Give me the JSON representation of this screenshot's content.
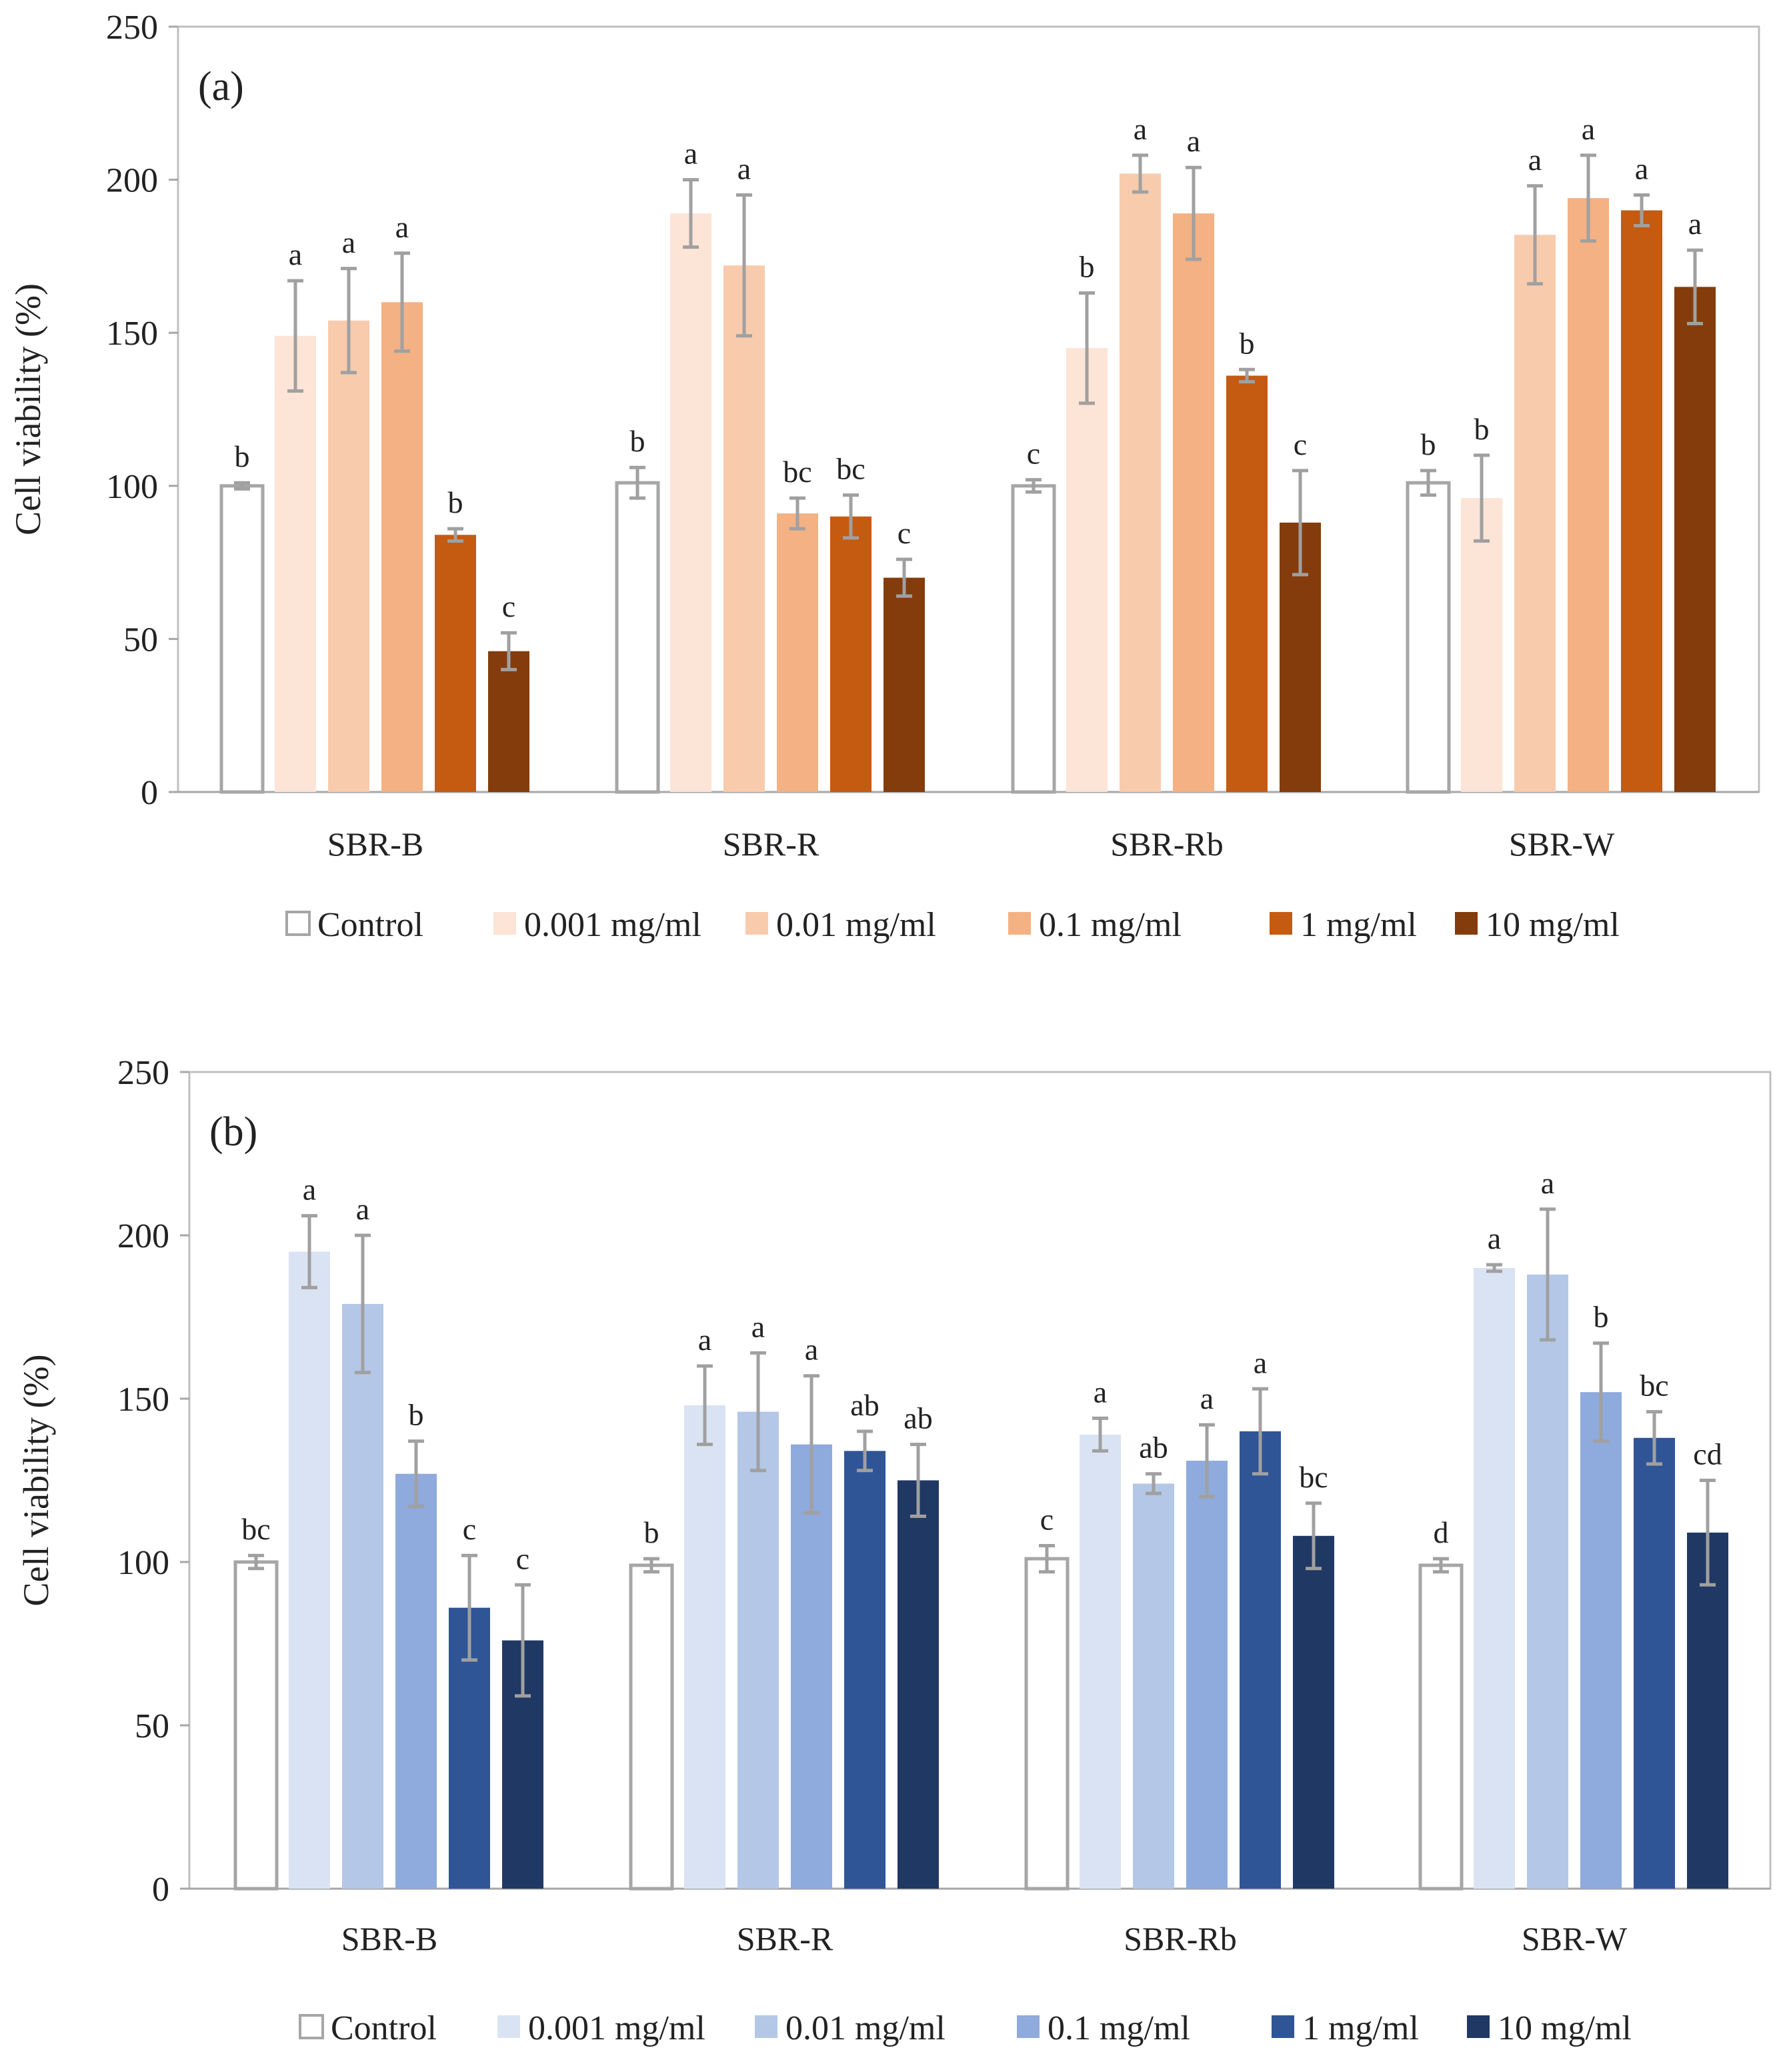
{
  "colors": {
    "control_fill": "#ffffff",
    "control_stroke": "#a6a6a6",
    "error_bar": "#a0a0a0",
    "axis": "#a6a6a6",
    "frame": "#bfbfbf"
  },
  "chart_data": [
    {
      "type": "bar",
      "panel_label": "(a)",
      "ylabel": "Cell viability (%)",
      "xlabel": "",
      "ylim": [
        0,
        250
      ],
      "yticks": [
        "0",
        "50",
        "100",
        "150",
        "200",
        "250"
      ],
      "grid": false,
      "legend_position": "bottom",
      "categories": [
        "SBR-B",
        "SBR-R",
        "SBR-Rb",
        "SBR-W"
      ],
      "series": [
        {
          "name": "Control",
          "color": "#ffffff",
          "values": [
            100,
            101,
            100,
            101
          ],
          "errors": [
            1,
            5,
            2,
            4
          ],
          "letters": [
            "b",
            "b",
            "c",
            "b"
          ]
        },
        {
          "name": "0.001 mg/ml",
          "color": "#fce4d6",
          "values": [
            149,
            189,
            145,
            96
          ],
          "errors": [
            18,
            11,
            18,
            14
          ],
          "letters": [
            "a",
            "a",
            "b",
            "b"
          ]
        },
        {
          "name": "0.01 mg/ml",
          "color": "#f8cbad",
          "values": [
            154,
            172,
            202,
            182
          ],
          "errors": [
            17,
            23,
            6,
            16
          ],
          "letters": [
            "a",
            "a",
            "a",
            "a"
          ]
        },
        {
          "name": "0.1 mg/ml",
          "color": "#f4b183",
          "values": [
            160,
            91,
            189,
            194
          ],
          "errors": [
            16,
            5,
            15,
            14
          ],
          "letters": [
            "a",
            "bc",
            "a",
            "a"
          ]
        },
        {
          "name": "1 mg/ml",
          "color": "#c55a11",
          "values": [
            84,
            90,
            136,
            190
          ],
          "errors": [
            2,
            7,
            2,
            5
          ],
          "letters": [
            "b",
            "bc",
            "b",
            "a"
          ]
        },
        {
          "name": "10 mg/ml",
          "color": "#843c0c",
          "values": [
            46,
            70,
            88,
            165
          ],
          "errors": [
            6,
            6,
            17,
            12
          ],
          "letters": [
            "c",
            "c",
            "c",
            "a"
          ]
        }
      ]
    },
    {
      "type": "bar",
      "panel_label": "(b)",
      "ylabel": "Cell viability (%)",
      "xlabel": "",
      "ylim": [
        0,
        250
      ],
      "yticks": [
        "0",
        "50",
        "100",
        "150",
        "200",
        "250"
      ],
      "grid": false,
      "legend_position": "bottom",
      "categories": [
        "SBR-B",
        "SBR-R",
        "SBR-Rb",
        "SBR-W"
      ],
      "series": [
        {
          "name": "Control",
          "color": "#ffffff",
          "values": [
            100,
            99,
            101,
            99
          ],
          "errors": [
            2,
            2,
            4,
            2
          ],
          "letters": [
            "bc",
            "b",
            "c",
            "d"
          ]
        },
        {
          "name": "0.001 mg/ml",
          "color": "#dae3f3",
          "values": [
            195,
            148,
            139,
            190
          ],
          "errors": [
            11,
            12,
            5,
            1
          ],
          "letters": [
            "a",
            "a",
            "a",
            "a"
          ]
        },
        {
          "name": "0.01 mg/ml",
          "color": "#b4c7e7",
          "values": [
            179,
            146,
            124,
            188
          ],
          "errors": [
            21,
            18,
            3,
            20
          ],
          "letters": [
            "a",
            "a",
            "ab",
            "a"
          ]
        },
        {
          "name": "0.1 mg/ml",
          "color": "#8faadc",
          "values": [
            127,
            136,
            131,
            152
          ],
          "errors": [
            10,
            21,
            11,
            15
          ],
          "letters": [
            "b",
            "a",
            "a",
            "b"
          ]
        },
        {
          "name": "1 mg/ml",
          "color": "#2f5597",
          "values": [
            86,
            134,
            140,
            138
          ],
          "errors": [
            16,
            6,
            13,
            8
          ],
          "letters": [
            "c",
            "ab",
            "a",
            "bc"
          ]
        },
        {
          "name": "10 mg/ml",
          "color": "#203864",
          "values": [
            76,
            125,
            108,
            109
          ],
          "errors": [
            17,
            11,
            10,
            16
          ],
          "letters": [
            "c",
            "ab",
            "bc",
            "cd"
          ]
        }
      ]
    }
  ]
}
